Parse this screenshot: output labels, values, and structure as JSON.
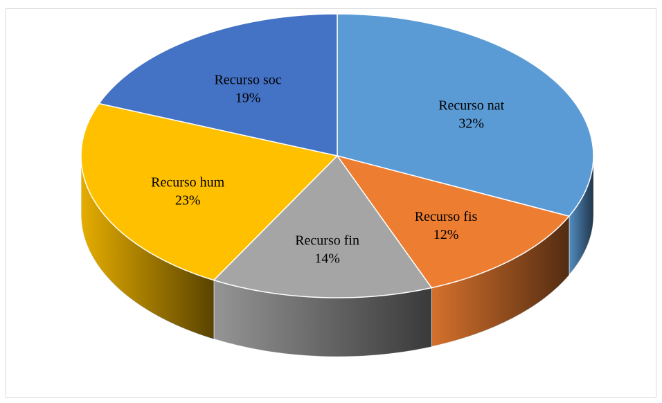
{
  "chart_data": {
    "type": "pie",
    "categories": [
      "Recurso nat",
      "Recurso fis",
      "Recurso fin",
      "Recurso hum",
      "Recurso soc"
    ],
    "values": [
      32,
      12,
      14,
      23,
      19
    ],
    "value_labels": [
      "32%",
      "12%",
      "14%",
      "23%",
      "19%"
    ],
    "colors": [
      "#5b9bd5",
      "#ed7d31",
      "#a5a5a5",
      "#ffc000",
      "#4472c4"
    ]
  }
}
